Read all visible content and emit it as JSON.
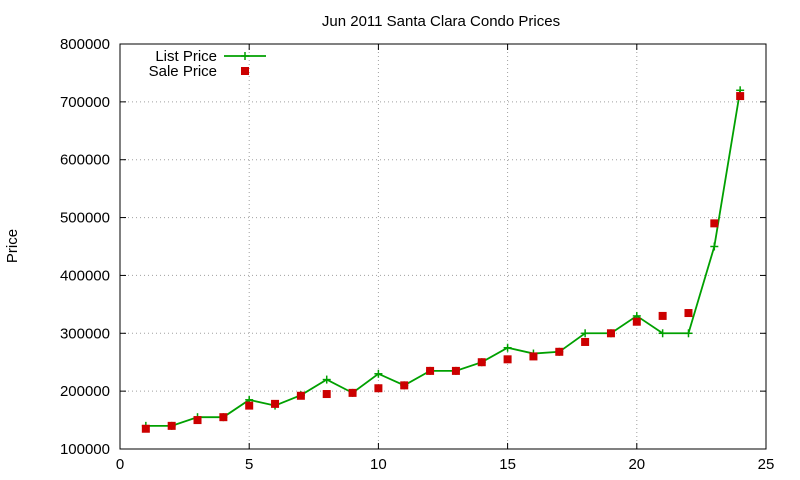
{
  "chart_data": {
    "type": "line",
    "title": "Jun 2011 Santa Clara Condo Prices",
    "xlabel": "",
    "ylabel": "Price",
    "xlim": [
      0,
      25
    ],
    "ylim": [
      100000,
      800000
    ],
    "xticks": [
      "0",
      "5",
      "10",
      "15",
      "20",
      "25"
    ],
    "yticks": [
      "100000",
      "200000",
      "300000",
      "400000",
      "500000",
      "600000",
      "700000",
      "800000"
    ],
    "grid": true,
    "legend_position": "top-left",
    "x": [
      1,
      2,
      3,
      4,
      5,
      6,
      7,
      8,
      9,
      10,
      11,
      12,
      13,
      14,
      15,
      16,
      17,
      18,
      19,
      20,
      21,
      22,
      23,
      24
    ],
    "series": [
      {
        "name": "List Price",
        "style": "line+cross",
        "color": "#00a000",
        "values": [
          140000,
          140000,
          155000,
          155000,
          185000,
          175000,
          193000,
          220000,
          197000,
          230000,
          210000,
          235000,
          235000,
          250000,
          275000,
          265000,
          268000,
          300000,
          300000,
          330000,
          300000,
          300000,
          450000,
          720000
        ]
      },
      {
        "name": "Sale Price",
        "style": "square-points",
        "color": "#cc0000",
        "values": [
          135000,
          140000,
          150000,
          155000,
          175000,
          178000,
          192000,
          195000,
          197000,
          205000,
          210000,
          235000,
          235000,
          250000,
          255000,
          260000,
          268000,
          285000,
          300000,
          320000,
          330000,
          335000,
          490000,
          710000
        ]
      }
    ]
  }
}
